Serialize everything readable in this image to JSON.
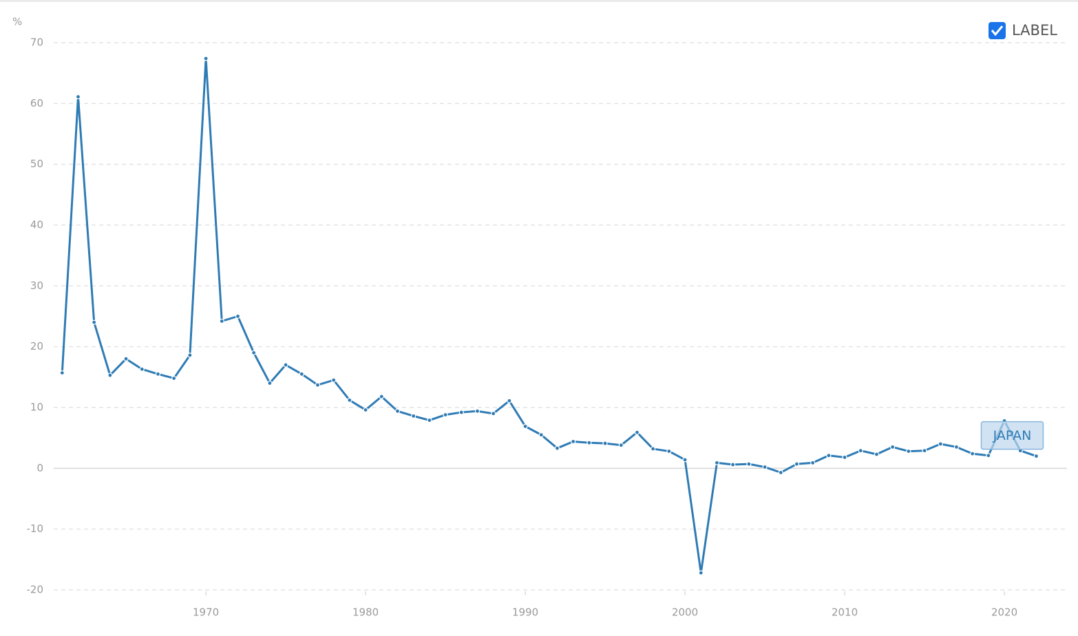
{
  "chart_data": {
    "type": "line",
    "y_unit_label": "%",
    "toggle_label": "LABEL",
    "x": [
      1961,
      1962,
      1963,
      1964,
      1965,
      1966,
      1967,
      1968,
      1969,
      1970,
      1971,
      1972,
      1973,
      1974,
      1975,
      1976,
      1977,
      1978,
      1979,
      1980,
      1981,
      1982,
      1983,
      1984,
      1985,
      1986,
      1987,
      1988,
      1989,
      1990,
      1991,
      1992,
      1993,
      1994,
      1995,
      1996,
      1997,
      1998,
      1999,
      2000,
      2001,
      2002,
      2003,
      2004,
      2005,
      2006,
      2007,
      2008,
      2009,
      2010,
      2011,
      2012,
      2013,
      2014,
      2015,
      2016,
      2017,
      2018,
      2019,
      2020,
      2021,
      2022
    ],
    "series": [
      {
        "name": "JAPAN",
        "color": "#2e7bb4",
        "values": [
          15.7,
          61.1,
          24.0,
          15.3,
          18.0,
          16.3,
          15.5,
          14.8,
          18.6,
          67.4,
          24.2,
          25.0,
          19.0,
          14.0,
          17.0,
          15.5,
          13.7,
          14.5,
          11.2,
          9.6,
          11.8,
          9.4,
          8.6,
          7.9,
          8.8,
          9.2,
          9.4,
          9.0,
          11.1,
          6.9,
          5.5,
          3.3,
          4.4,
          4.2,
          4.1,
          3.8,
          5.9,
          3.2,
          2.8,
          1.4,
          -17.2,
          0.9,
          0.6,
          0.7,
          0.2,
          -0.7,
          0.7,
          0.9,
          2.1,
          1.8,
          2.9,
          2.3,
          3.5,
          2.8,
          2.9,
          4.0,
          3.5,
          2.4,
          2.1,
          7.8,
          2.9,
          2.0
        ]
      }
    ],
    "xlim": [
      1960.47,
      2023.92
    ],
    "xticks": [
      1970,
      1980,
      1990,
      2000,
      2010,
      2020
    ],
    "ylim": [
      -20,
      70
    ],
    "yticks": [
      -20,
      -10,
      0,
      10,
      20,
      30,
      40,
      50,
      60,
      70
    ],
    "grid": true
  }
}
